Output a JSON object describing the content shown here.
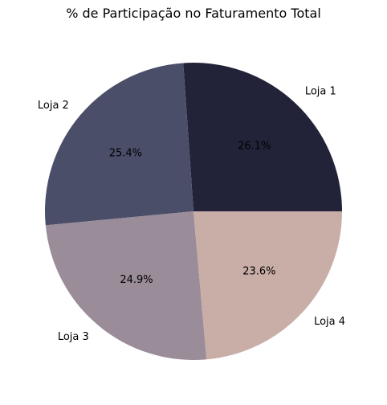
{
  "chart_data": {
    "type": "pie",
    "title": "% de Participação no Faturamento Total",
    "slices": [
      {
        "label": "Loja 1",
        "value": 26.1,
        "pct_label": "26.1%",
        "color": "#222339"
      },
      {
        "label": "Loja 2",
        "value": 25.4,
        "pct_label": "25.4%",
        "color": "#4a4e69"
      },
      {
        "label": "Loja 3",
        "value": 24.9,
        "pct_label": "24.9%",
        "color": "#9a8c98"
      },
      {
        "label": "Loja 4",
        "value": 23.6,
        "pct_label": "23.6%",
        "color": "#c9ada7"
      }
    ],
    "start_angle_deg": 0,
    "direction": "counterclockwise",
    "legend": "none"
  }
}
